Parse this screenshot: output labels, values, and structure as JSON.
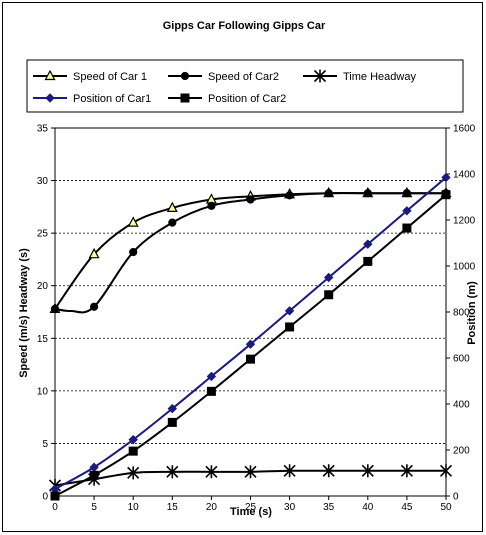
{
  "chart_data": {
    "type": "line",
    "title": "Gipps Car Following Gipps Car",
    "xlabel": "Time  (s)",
    "ylabel_left": "Speed  (m/s) Headway (s)",
    "ylabel_right": "Position (m)",
    "xlim": [
      0,
      50
    ],
    "ylim_left": [
      0,
      35
    ],
    "ylim_right": [
      0,
      1600
    ],
    "x_ticks": [
      0,
      5,
      10,
      15,
      20,
      25,
      30,
      35,
      40,
      45,
      50
    ],
    "y_left_ticks": [
      0,
      5,
      10,
      15,
      20,
      25,
      30,
      35
    ],
    "y_right_ticks": [
      0,
      200,
      400,
      600,
      800,
      1000,
      1200,
      1400,
      1600
    ],
    "grid": "horizontal dashed",
    "legend_placement": "top",
    "series": [
      {
        "name": "Speed of Car 1",
        "axis": "left",
        "marker": "triangle",
        "color": "#000000",
        "x": [
          0,
          5,
          10,
          15,
          20,
          25,
          30,
          35,
          40,
          45,
          50
        ],
        "values": [
          17.8,
          23.0,
          26.0,
          27.4,
          28.2,
          28.5,
          28.7,
          28.8,
          28.8,
          28.8,
          28.8
        ]
      },
      {
        "name": "Speed of Car2",
        "axis": "left",
        "marker": "circle",
        "color": "#000000",
        "x": [
          0,
          2,
          5,
          10,
          15,
          20,
          25,
          30,
          35,
          40,
          45,
          50
        ],
        "values": [
          17.8,
          17.6,
          18.0,
          23.2,
          26.0,
          27.6,
          28.2,
          28.6,
          28.8,
          28.8,
          28.8,
          28.8
        ]
      },
      {
        "name": "Time Headway",
        "axis": "left",
        "marker": "asterisk",
        "color": "#000000",
        "x": [
          0,
          5,
          10,
          15,
          20,
          25,
          30,
          35,
          40,
          45,
          50
        ],
        "values": [
          1.0,
          1.6,
          2.2,
          2.3,
          2.3,
          2.3,
          2.4,
          2.4,
          2.4,
          2.4,
          2.4
        ]
      },
      {
        "name": "Position of Car1",
        "axis": "right",
        "marker": "diamond",
        "color": "#1a1a80",
        "x": [
          0,
          5,
          10,
          15,
          20,
          25,
          30,
          35,
          40,
          45,
          50
        ],
        "values": [
          30,
          125,
          245,
          380,
          520,
          660,
          805,
          950,
          1095,
          1240,
          1385
        ]
      },
      {
        "name": "Position of Car2",
        "axis": "right",
        "marker": "square",
        "color": "#000000",
        "x": [
          0,
          5,
          10,
          15,
          20,
          25,
          30,
          35,
          40,
          45,
          50
        ],
        "values": [
          0,
          90,
          195,
          320,
          455,
          595,
          735,
          875,
          1020,
          1165,
          1310
        ]
      }
    ]
  }
}
